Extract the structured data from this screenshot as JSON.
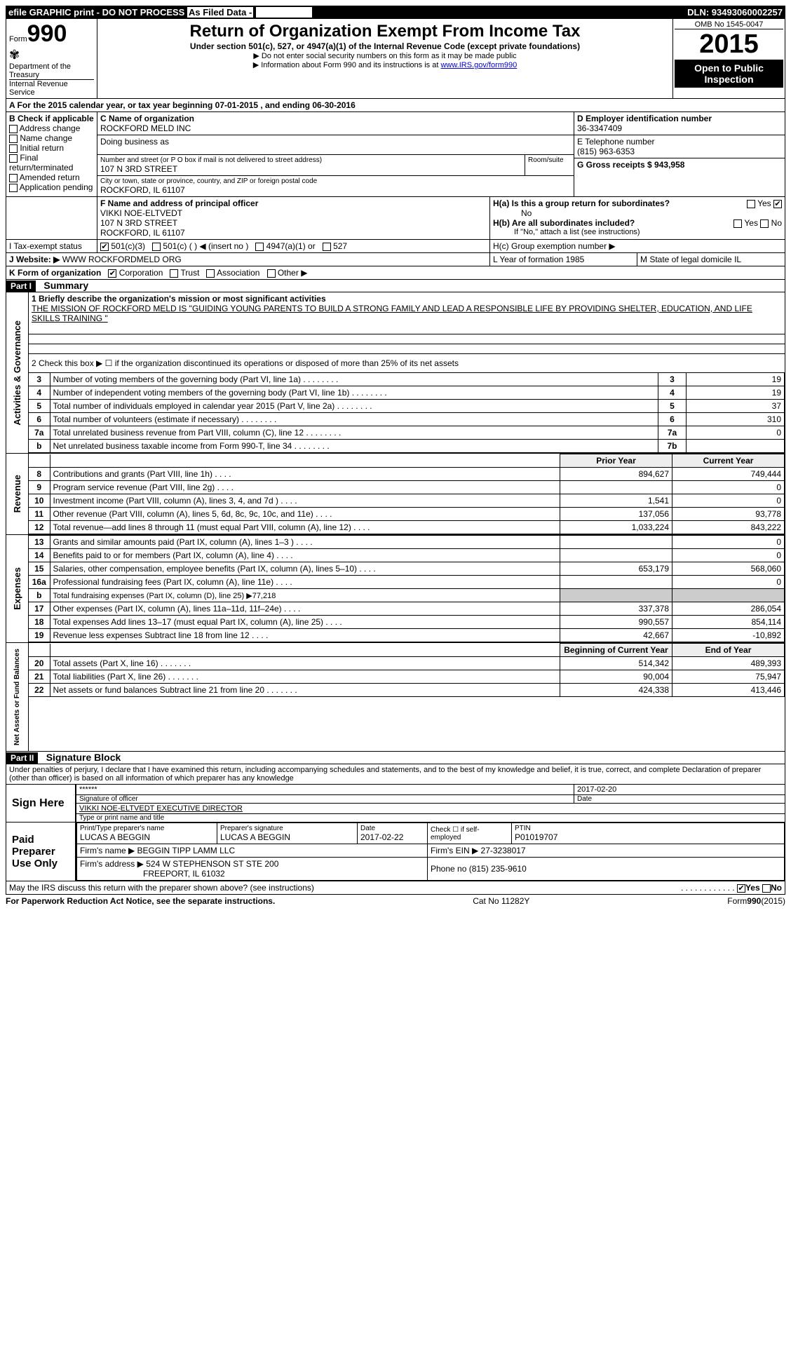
{
  "topbar": {
    "left": "efile GRAPHIC print - DO NOT PROCESS",
    "mid": "As Filed Data -",
    "right": "DLN: 93493060002257"
  },
  "header": {
    "form": "Form",
    "num": "990",
    "dept": "Department of the Treasury",
    "irs": "Internal Revenue Service",
    "title": "Return of Organization Exempt From Income Tax",
    "subtitle": "Under section 501(c), 527, or 4947(a)(1) of the Internal Revenue Code (except private foundations)",
    "note1": "▶ Do not enter social security numbers on this form as it may be made public",
    "note2_pre": "▶ Information about Form 990 and its instructions is at ",
    "note2_link": "www.IRS.gov/form990",
    "omb": "OMB No 1545-0047",
    "year": "2015",
    "open": "Open to Public Inspection"
  },
  "lineA": {
    "text": "A  For the 2015 calendar year, or tax year beginning 07-01-2015     , and ending 06-30-2016"
  },
  "boxB": {
    "title": "B Check if applicable",
    "items": [
      "Address change",
      "Name change",
      "Initial return",
      "Final return/terminated",
      "Amended return",
      "Application pending"
    ]
  },
  "boxC": {
    "label": "C Name of organization",
    "name": "ROCKFORD MELD INC",
    "dba_label": "Doing business as",
    "addr_label": "Number and street (or P O box if mail is not delivered to street address)",
    "room_label": "Room/suite",
    "addr": "107 N 3RD STREET",
    "city_label": "City or town, state or province, country, and ZIP or foreign postal code",
    "city": "ROCKFORD, IL 61107"
  },
  "boxD": {
    "label": "D Employer identification number",
    "value": "36-3347409"
  },
  "boxE": {
    "label": "E Telephone number",
    "value": "(815) 963-6353"
  },
  "boxG": {
    "label": "G Gross receipts $ 943,958"
  },
  "boxF": {
    "label": "F Name and address of principal officer",
    "name": "VIKKI NOE-ELTVEDT",
    "addr1": "107 N 3RD STREET",
    "addr2": "ROCKFORD, IL  61107"
  },
  "boxH": {
    "ha": "H(a) Is this a group return for subordinates?",
    "ha_ans": "No",
    "hb": "H(b) Are all subordinates included?",
    "hb_note": "If \"No,\" attach a list  (see instructions)",
    "hc": "H(c) Group exemption number ▶"
  },
  "boxI": {
    "label": "I  Tax-exempt status",
    "opts": [
      "501(c)(3)",
      "501(c) (  ) ◀ (insert no )",
      "4947(a)(1) or",
      "527"
    ]
  },
  "boxJ": {
    "label": "J  Website: ▶",
    "value": "WWW ROCKFORDMELD ORG"
  },
  "boxK": {
    "label": "K Form of organization",
    "opts": [
      "Corporation",
      "Trust",
      "Association",
      "Other ▶"
    ]
  },
  "boxL": {
    "label": "L Year of formation  1985"
  },
  "boxM": {
    "label": "M State of legal domicile  IL"
  },
  "partI": {
    "label": "Part I",
    "title": "Summary"
  },
  "mission": {
    "q": "1 Briefly describe the organization's mission or most significant activities",
    "text": "THE MISSION OF ROCKFORD MELD IS \"GUIDING YOUNG PARENTS TO BUILD A STRONG FAMILY AND LEAD A RESPONSIBLE LIFE BY PROVIDING SHELTER, EDUCATION, AND LIFE SKILLS TRAINING \""
  },
  "line2": "2 Check this box ▶ ☐ if the organization discontinued its operations or disposed of more than 25% of its net assets",
  "gov_rows": [
    {
      "n": "3",
      "desc": "Number of voting members of the governing body (Part VI, line 1a)",
      "box": "3",
      "val": "19"
    },
    {
      "n": "4",
      "desc": "Number of independent voting members of the governing body (Part VI, line 1b)",
      "box": "4",
      "val": "19"
    },
    {
      "n": "5",
      "desc": "Total number of individuals employed in calendar year 2015 (Part V, line 2a)",
      "box": "5",
      "val": "37"
    },
    {
      "n": "6",
      "desc": "Total number of volunteers (estimate if necessary)",
      "box": "6",
      "val": "310"
    },
    {
      "n": "7a",
      "desc": "Total unrelated business revenue from Part VIII, column (C), line 12",
      "box": "7a",
      "val": "0"
    },
    {
      "n": "b",
      "desc": "Net unrelated business taxable income from Form 990-T, line 34",
      "box": "7b",
      "val": ""
    }
  ],
  "rev_header": {
    "prior": "Prior Year",
    "current": "Current Year"
  },
  "rev_rows": [
    {
      "n": "8",
      "desc": "Contributions and grants (Part VIII, line 1h)",
      "prior": "894,627",
      "curr": "749,444"
    },
    {
      "n": "9",
      "desc": "Program service revenue (Part VIII, line 2g)",
      "prior": "",
      "curr": "0"
    },
    {
      "n": "10",
      "desc": "Investment income (Part VIII, column (A), lines 3, 4, and 7d )",
      "prior": "1,541",
      "curr": "0"
    },
    {
      "n": "11",
      "desc": "Other revenue (Part VIII, column (A), lines 5, 6d, 8c, 9c, 10c, and 11e)",
      "prior": "137,056",
      "curr": "93,778"
    },
    {
      "n": "12",
      "desc": "Total revenue—add lines 8 through 11 (must equal Part VIII, column (A), line 12)",
      "prior": "1,033,224",
      "curr": "843,222"
    }
  ],
  "exp_rows": [
    {
      "n": "13",
      "desc": "Grants and similar amounts paid (Part IX, column (A), lines 1–3 )",
      "prior": "",
      "curr": "0"
    },
    {
      "n": "14",
      "desc": "Benefits paid to or for members (Part IX, column (A), line 4)",
      "prior": "",
      "curr": "0"
    },
    {
      "n": "15",
      "desc": "Salaries, other compensation, employee benefits (Part IX, column (A), lines 5–10)",
      "prior": "653,179",
      "curr": "568,060"
    },
    {
      "n": "16a",
      "desc": "Professional fundraising fees (Part IX, column (A), line 11e)",
      "prior": "",
      "curr": "0"
    },
    {
      "n": "b",
      "desc": "Total fundraising expenses (Part IX, column (D), line 25) ▶77,218",
      "prior": "—",
      "curr": "—"
    },
    {
      "n": "17",
      "desc": "Other expenses (Part IX, column (A), lines 11a–11d, 11f–24e)",
      "prior": "337,378",
      "curr": "286,054"
    },
    {
      "n": "18",
      "desc": "Total expenses  Add lines 13–17 (must equal Part IX, column (A), line 25)",
      "prior": "990,557",
      "curr": "854,114"
    },
    {
      "n": "19",
      "desc": "Revenue less expenses  Subtract line 18 from line 12",
      "prior": "42,667",
      "curr": "-10,892"
    }
  ],
  "net_header": {
    "begin": "Beginning of Current Year",
    "end": "End of Year"
  },
  "net_rows": [
    {
      "n": "20",
      "desc": "Total assets (Part X, line 16)",
      "begin": "514,342",
      "end": "489,393"
    },
    {
      "n": "21",
      "desc": "Total liabilities (Part X, line 26)",
      "begin": "90,004",
      "end": "75,947"
    },
    {
      "n": "22",
      "desc": "Net assets or fund balances  Subtract line 21 from line 20",
      "begin": "424,338",
      "end": "413,446"
    }
  ],
  "partII": {
    "label": "Part II",
    "title": "Signature Block"
  },
  "perjury": "Under penalties of perjury, I declare that I have examined this return, including accompanying schedules and statements, and to the best of my knowledge and belief, it is true, correct, and complete  Declaration of preparer (other than officer) is based on all information of which preparer has any knowledge",
  "sign_here": {
    "label": "Sign Here",
    "sig": "******",
    "sig_label": "Signature of officer",
    "date": "2017-02-20",
    "date_label": "Date",
    "name": "VIKKI NOE-ELTVEDT EXECUTIVE DIRECTOR",
    "name_label": "Type or print name and title"
  },
  "paid": {
    "label": "Paid Preparer Use Only",
    "prep_name_label": "Print/Type preparer's name",
    "prep_name": "LUCAS A BEGGIN",
    "prep_sig_label": "Preparer's signature",
    "prep_sig": "LUCAS A BEGGIN",
    "date_label": "Date",
    "date": "2017-02-22",
    "check_label": "Check ☐ if self-employed",
    "ptin_label": "PTIN",
    "ptin": "P01019707",
    "firm_name_label": "Firm's name      ▶",
    "firm_name": "BEGGIN TIPP LAMM LLC",
    "firm_ein_label": "Firm's EIN ▶",
    "firm_ein": "27-3238017",
    "firm_addr_label": "Firm's address ▶",
    "firm_addr": "524 W STEPHENSON ST STE 200",
    "firm_addr2": "FREEPORT, IL  61032",
    "phone_label": "Phone no  (815) 235-9610"
  },
  "discuss": "May the IRS discuss this return with the preparer shown above? (see instructions)",
  "footer": {
    "left": "For Paperwork Reduction Act Notice, see the separate instructions.",
    "mid": "Cat No  11282Y",
    "right": "Form 990 (2015)"
  },
  "yes": "Yes",
  "no": "No",
  "sections": {
    "gov": "Activities & Governance",
    "rev": "Revenue",
    "exp": "Expenses",
    "net": "Net Assets or Fund Balances"
  }
}
